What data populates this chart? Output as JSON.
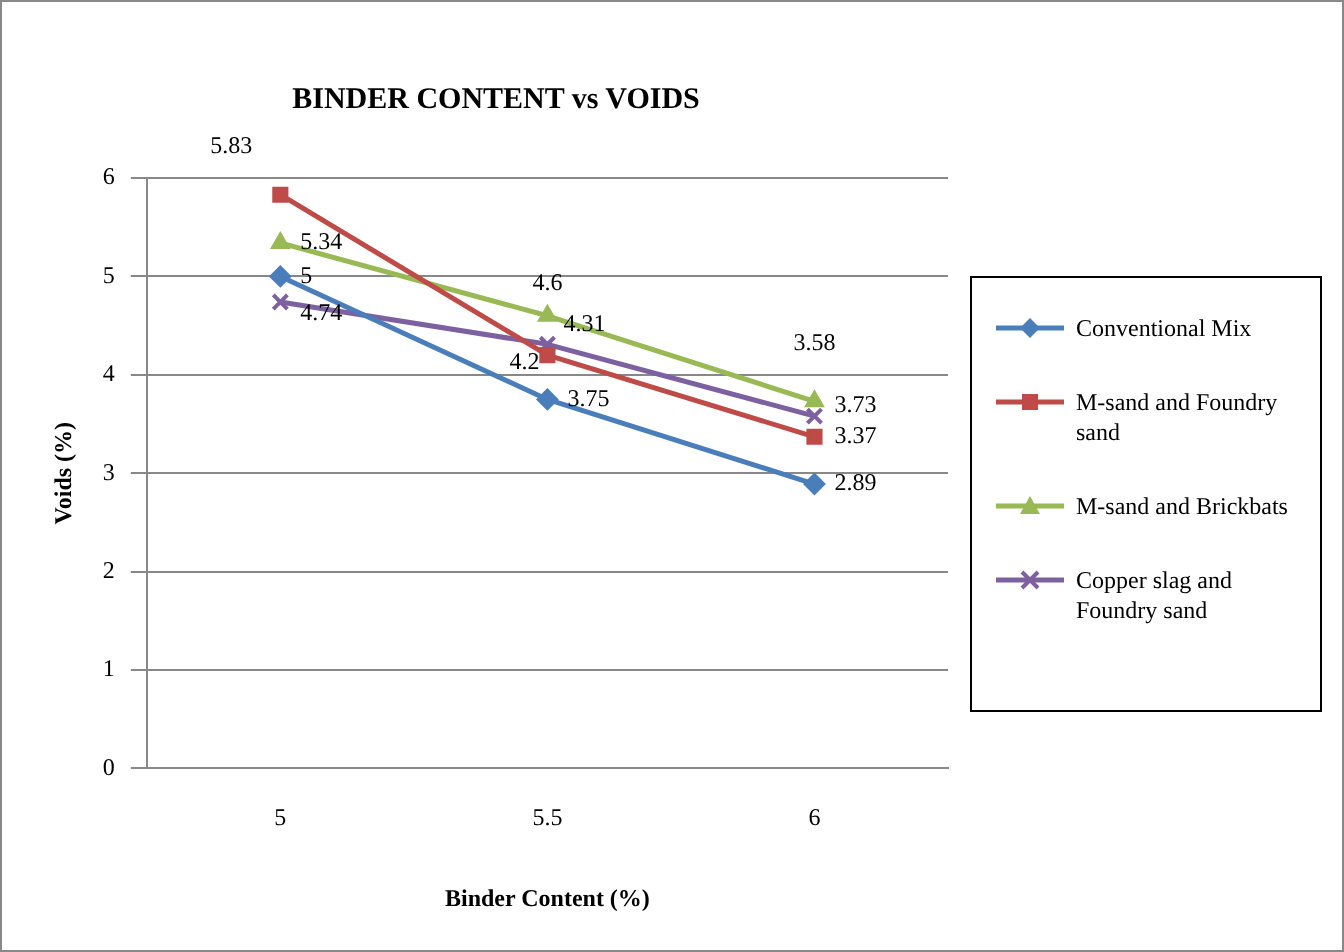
{
  "chart_data": {
    "type": "line",
    "title": "BINDER CONTENT vs VOIDS",
    "xlabel": "Binder Content (%)",
    "ylabel": "Voids (%)",
    "categories": [
      "5",
      "5.5",
      "6"
    ],
    "series": [
      {
        "name": "Conventional Mix",
        "color": "#4a7ebb",
        "marker": "diamond",
        "values": [
          5,
          3.75,
          2.89
        ]
      },
      {
        "name": "M-sand and Foundry sand",
        "color": "#be4b48",
        "marker": "square",
        "values": [
          5.83,
          4.2,
          3.37
        ]
      },
      {
        "name": "M-sand and Brickbats",
        "color": "#98b954",
        "marker": "triangle",
        "values": [
          5.34,
          4.6,
          3.73
        ]
      },
      {
        "name": "Copper slag and Foundry sand",
        "color": "#7d60a0",
        "marker": "cross",
        "values": [
          4.74,
          4.31,
          3.58
        ]
      }
    ],
    "ylim": [
      0,
      6
    ],
    "yticks": [
      0,
      1,
      2,
      3,
      4,
      5,
      6
    ],
    "grid": "y",
    "legend": "right",
    "data_labels": true,
    "line_style": "solid"
  }
}
